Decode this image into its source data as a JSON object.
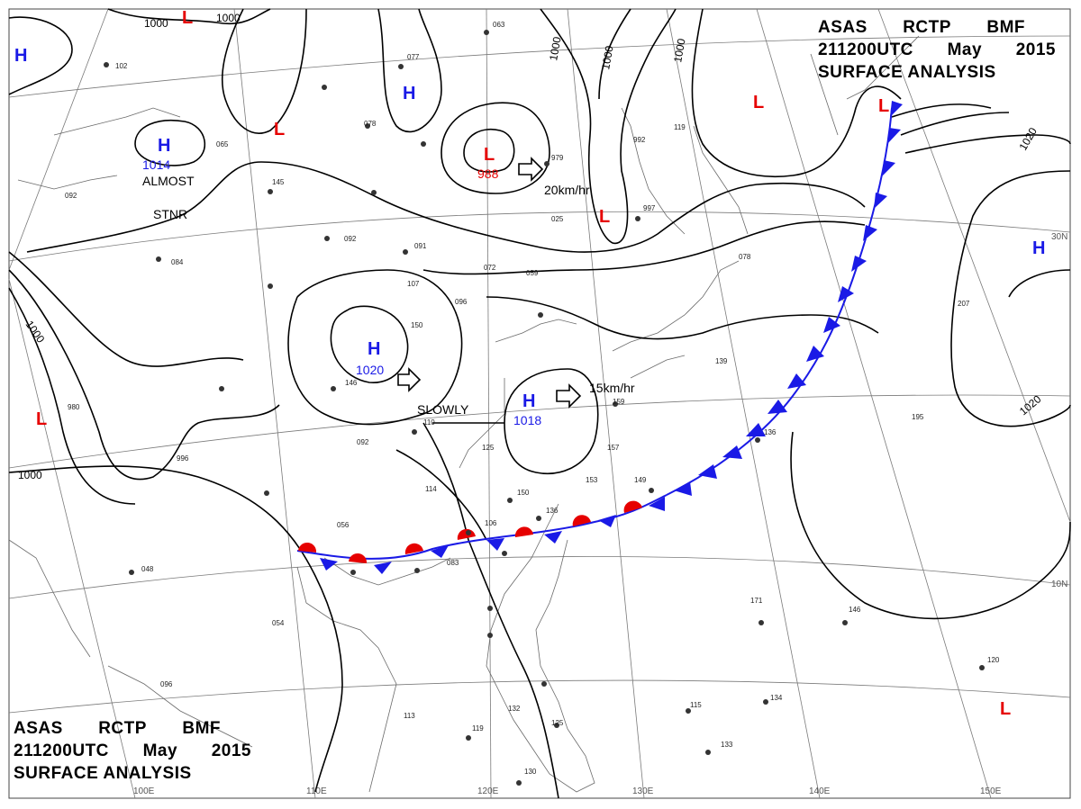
{
  "header": {
    "line1": [
      "ASAS",
      "RCTP",
      "BMF"
    ],
    "line2": [
      "211200UTC",
      "May",
      "2015"
    ],
    "line3": "SURFACE ANALYSIS"
  },
  "footer": {
    "line1": [
      "ASAS",
      "RCTP",
      "BMF"
    ],
    "line2": [
      "211200UTC",
      "May",
      "2015"
    ],
    "line3": "SURFACE ANALYSIS"
  },
  "grid_labels": {
    "lon": [
      "100E",
      "110E",
      "120E",
      "130E",
      "140E",
      "150E"
    ],
    "lat": [
      "30N",
      "10N"
    ]
  },
  "pressure_centers": [
    {
      "type": "H",
      "value": ""
    },
    {
      "type": "H",
      "value": "1014"
    },
    {
      "type": "H",
      "value": ""
    },
    {
      "type": "H",
      "value": "1020"
    },
    {
      "type": "H",
      "value": "1018"
    },
    {
      "type": "H",
      "value": ""
    },
    {
      "type": "L",
      "value": ""
    },
    {
      "type": "L",
      "value": ""
    },
    {
      "type": "L",
      "value": "988"
    },
    {
      "type": "L",
      "value": ""
    },
    {
      "type": "L",
      "value": ""
    },
    {
      "type": "L",
      "value": ""
    },
    {
      "type": "L",
      "value": ""
    },
    {
      "type": "L",
      "value": ""
    }
  ],
  "isobar_labels": [
    "1000",
    "1000",
    "1000",
    "1000",
    "1000",
    "1000",
    "1000",
    "1020",
    "1020"
  ],
  "annotations": {
    "almost": "ALMOST",
    "stnr": "STNR",
    "slowly": "SLOWLY",
    "speed1": "20km/hr",
    "speed2": "15km/hr"
  },
  "stations": [
    "063",
    "077",
    "078",
    "145",
    "092",
    "091",
    "107",
    "150",
    "096",
    "072",
    "059",
    "025",
    "979",
    "992",
    "997",
    "146",
    "110",
    "092",
    "125",
    "114",
    "150",
    "136",
    "106",
    "083",
    "056",
    "054",
    "048",
    "096",
    "113",
    "119",
    "132",
    "125",
    "130",
    "171",
    "146",
    "134",
    "133",
    "207",
    "195",
    "136",
    "157",
    "159",
    "149",
    "153",
    "078",
    "139",
    "120",
    "115",
    "980",
    "996",
    "102",
    "092",
    "065",
    "084",
    "119"
  ],
  "colors": {
    "high": "#1a1ae6",
    "low": "#e60000",
    "cold_front": "#1a1ae6",
    "warm_front": "#e60000",
    "grid": "#7a7a7a",
    "coast": "#6a6a6a",
    "isobar": "#000000"
  }
}
